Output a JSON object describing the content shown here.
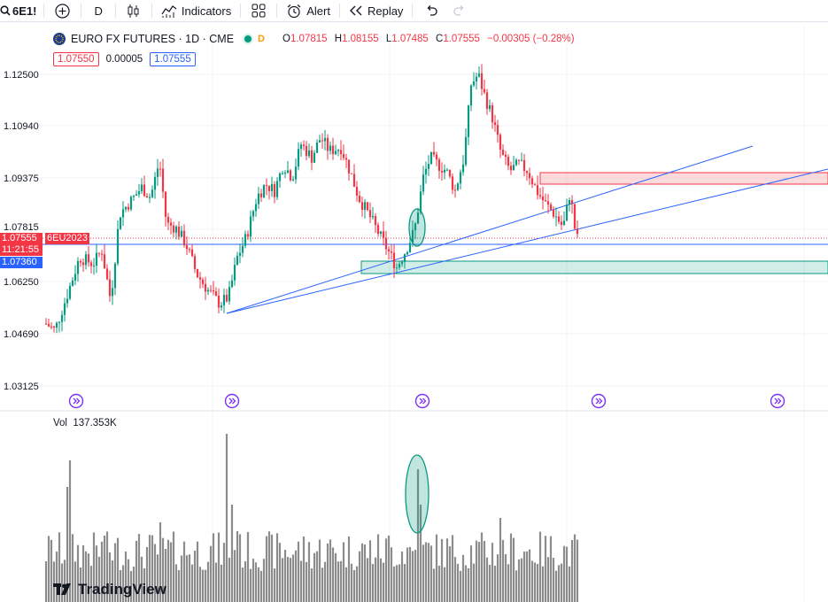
{
  "toolbar": {
    "symbol": "6E1!",
    "interval": "D",
    "indicators_label": "Indicators",
    "alert_label": "Alert",
    "replay_label": "Replay"
  },
  "legend": {
    "title": "EURO FX FUTURES · 1D · CME",
    "status_letter": "D",
    "o_key": "O",
    "o": "1.07815",
    "h_key": "H",
    "h": "1.08155",
    "l_key": "L",
    "l": "1.07485",
    "c_key": "C",
    "c": "1.07555",
    "change": "−0.00305 (−0.28%)"
  },
  "prices": {
    "sell": "1.07550",
    "spread": "0.00005",
    "buy": "1.07555"
  },
  "price_scale": {
    "labels": [
      "1.12500",
      "1.10940",
      "1.09375",
      "1.07815",
      "1.06250",
      "1.04690",
      "1.03125"
    ],
    "last_price": "1.07555",
    "countdown": "11:21:55",
    "contract": "6EU2023",
    "line_price": "1.07360"
  },
  "volume": {
    "label": "Vol",
    "value": "137.353K"
  },
  "logo": "TradingView",
  "colors": {
    "up": "#089981",
    "down": "#f23645",
    "line": "#2962ff",
    "vol": "#8c8c8c"
  }
}
